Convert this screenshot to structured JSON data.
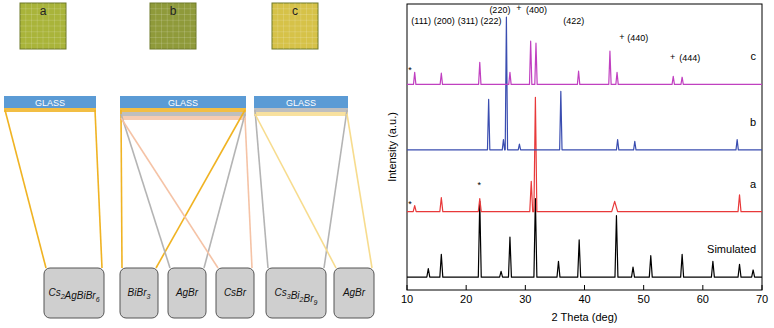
{
  "panels": [
    {
      "label": "a",
      "substrate": "GLASS",
      "components": [
        {
          "name": "Cs2AgBiBr6",
          "color": "#f0b323"
        }
      ]
    },
    {
      "label": "b",
      "substrate": "GLASS",
      "components": [
        {
          "name": "BiBr3",
          "color": "#f0b323"
        },
        {
          "name": "AgBr",
          "color": "#b4b4b4"
        },
        {
          "name": "CsBr",
          "color": "#f5c3a6"
        }
      ]
    },
    {
      "label": "c",
      "substrate": "GLASS",
      "components": [
        {
          "name": "Cs3Bi2Br9",
          "color": "#b4b4b4"
        },
        {
          "name": "AgBr",
          "color": "#f7dc8e"
        }
      ]
    }
  ],
  "chart_data": {
    "type": "line",
    "x_label": "2 Theta (deg)",
    "y_label": "Intensity (a.u.)",
    "xlim": [
      10,
      70
    ],
    "ylim": [
      0,
      100
    ],
    "xticks": [
      10,
      20,
      30,
      40,
      50,
      60,
      70
    ],
    "tick_labels": "x",
    "series": [
      {
        "name": "Simulated",
        "color": "#000000",
        "x": [
          10,
          13.35,
          13.6,
          13.85,
          15.55,
          15.8,
          16.05,
          22.05,
          22.3,
          22.55,
          25.65,
          25.9,
          26.15,
          27.15,
          27.4,
          27.65,
          31.45,
          31.7,
          31.95,
          35.35,
          35.6,
          35.85,
          38.85,
          39.1,
          39.35,
          45.15,
          45.4,
          45.65,
          47.95,
          48.2,
          48.45,
          50.95,
          51.2,
          51.45,
          56.25,
          56.5,
          56.75,
          61.45,
          61.7,
          61.95,
          65.95,
          66.2,
          66.45,
          68.25,
          68.5,
          68.75,
          70
        ],
        "values": [
          4.5,
          4.5,
          7.5,
          4.5,
          4.5,
          12.5,
          4.5,
          4.5,
          31,
          4.5,
          4.5,
          6.5,
          4.5,
          4.5,
          18.5,
          4.5,
          4.5,
          32,
          4.5,
          4.5,
          10,
          4.5,
          4.5,
          17.5,
          4.5,
          4.5,
          26,
          4.5,
          4.5,
          8,
          4.5,
          4.5,
          12,
          4.5,
          4.5,
          12.5,
          4.5,
          4.5,
          10,
          4.5,
          4.5,
          9,
          4.5,
          4.5,
          7,
          4.5,
          4.5
        ]
      },
      {
        "name": "a",
        "color": "#e8393a",
        "x": [
          10,
          11.05,
          11.3,
          11.55,
          15.55,
          15.8,
          16.05,
          22.05,
          22.3,
          22.55,
          30.75,
          31.0,
          31.25,
          31.45,
          31.7,
          31.95,
          44.6,
          45.1,
          45.6,
          65.95,
          66.2,
          66.45,
          70
        ],
        "values": [
          27.4,
          27.4,
          29.5,
          27.4,
          27.4,
          32.3,
          27.4,
          27.4,
          32,
          27.4,
          27.4,
          38,
          27.4,
          27.4,
          67.4,
          27.4,
          27.4,
          31,
          27.4,
          27.4,
          33.3,
          27.4,
          27.4
        ]
      },
      {
        "name": "b",
        "color": "#3a4db0",
        "x": [
          10,
          23.6,
          23.8,
          24.0,
          26.1,
          26.3,
          26.5,
          26.6,
          26.8,
          27.0,
          28.8,
          29.0,
          29.2,
          35.8,
          36.0,
          36.2,
          45.4,
          45.6,
          45.8,
          48.3,
          48.5,
          48.7,
          65.6,
          65.8,
          66.0,
          70
        ],
        "values": [
          49,
          49,
          66.7,
          49,
          49,
          52.6,
          49,
          49,
          95.4,
          49,
          49,
          51,
          49,
          49,
          69.5,
          49,
          49,
          52.6,
          49,
          49,
          52,
          49,
          49,
          52.6,
          49,
          49
        ]
      },
      {
        "name": "c",
        "color": "#c040c0",
        "x": [
          10,
          11.1,
          11.3,
          11.5,
          15.6,
          15.8,
          16.0,
          22.1,
          22.3,
          22.5,
          27.2,
          27.4,
          27.6,
          30.7,
          30.9,
          31.1,
          31.6,
          31.8,
          32.0,
          38.8,
          39.0,
          39.2,
          44.1,
          44.3,
          44.5,
          45.3,
          45.5,
          45.7,
          54.8,
          55.0,
          55.2,
          56.3,
          56.5,
          56.7,
          70
        ],
        "values": [
          71.9,
          71.9,
          76.1,
          71.9,
          71.9,
          75.8,
          71.9,
          71.9,
          79.6,
          71.9,
          71.9,
          76.1,
          71.9,
          71.9,
          87,
          71.9,
          71.9,
          86.3,
          71.9,
          71.9,
          76.5,
          71.9,
          71.9,
          83.5,
          71.9,
          71.9,
          76.1,
          71.9,
          71.9,
          74.7,
          71.9,
          71.9,
          74.4,
          71.9,
          71.9
        ]
      }
    ],
    "annotations": [
      {
        "text": "(111)",
        "x": 12.4,
        "y": 94
      },
      {
        "text": "(200)",
        "x": 16.3,
        "y": 94
      },
      {
        "text": "(220)",
        "x": 25.7,
        "y": 98
      },
      {
        "text": "(311)",
        "x": 20.3,
        "y": 94
      },
      {
        "text": "(222)",
        "x": 24.2,
        "y": 94
      },
      {
        "text": "+",
        "x": 28.9,
        "y": 98.5
      },
      {
        "text": "(400)",
        "x": 31.9,
        "y": 98
      },
      {
        "text": "(422)",
        "x": 38.2,
        "y": 94
      },
      {
        "text": "+",
        "x": 46.3,
        "y": 88.5
      },
      {
        "text": "(440)",
        "x": 49.0,
        "y": 88
      },
      {
        "text": "+",
        "x": 54.9,
        "y": 81.5
      },
      {
        "text": "(444)",
        "x": 57.8,
        "y": 81
      },
      {
        "text": "*",
        "x": 10.5,
        "y": 77
      },
      {
        "text": "*",
        "x": 10.5,
        "y": 30.2
      },
      {
        "text": "*",
        "x": 22.2,
        "y": 36.6
      }
    ]
  }
}
